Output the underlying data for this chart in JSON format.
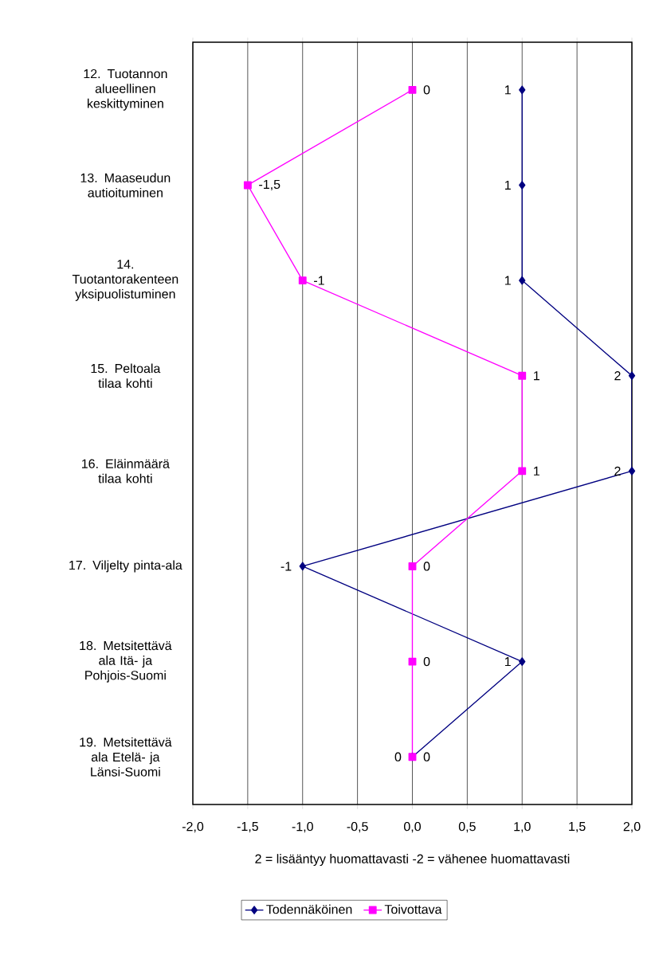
{
  "chart_data": {
    "type": "line",
    "orientation": "horizontal",
    "categories": [
      "12. Tuotannon alueellinen keskittyminen",
      "13. Maaseudun autioituminen",
      "14. Tuotantorakenteen yksipuolistuminen",
      "15. Peltoala tilaa kohti",
      "16. Eläinmäärä tilaa kohti",
      "17. Viljelty pinta-ala",
      "18. Metsitettävä ala Itä- ja Pohjois-Suomi",
      "19. Metsitettävä ala Etelä- ja Länsi-Suomi"
    ],
    "series": [
      {
        "name": "Todennäköinen",
        "color": "#000080",
        "marker": "diamond",
        "values": [
          1,
          1,
          1,
          2,
          2,
          -1,
          1,
          0
        ],
        "value_labels": [
          "1",
          "1",
          "1",
          "2",
          "2",
          "-1",
          "1",
          "0"
        ]
      },
      {
        "name": "Toivottava",
        "color": "#ff00ff",
        "marker": "square",
        "values": [
          0,
          -1.5,
          -1,
          1,
          1,
          0,
          0,
          0
        ],
        "value_labels": [
          "0",
          "-1,5",
          "-1",
          "1",
          "1",
          "0",
          "0",
          "0"
        ]
      }
    ],
    "xlim": [
      -2,
      2
    ],
    "xticks": [
      {
        "value": -2,
        "label": "-2,0"
      },
      {
        "value": -1.5,
        "label": "-1,5"
      },
      {
        "value": -1,
        "label": "-1,0"
      },
      {
        "value": -0.5,
        "label": "-0,5"
      },
      {
        "value": 0,
        "label": "0,0"
      },
      {
        "value": 0.5,
        "label": "0,5"
      },
      {
        "value": 1,
        "label": "1,0"
      },
      {
        "value": 1.5,
        "label": "1,5"
      },
      {
        "value": 2,
        "label": "2,0"
      }
    ],
    "xlabel": "2 = lisääntyy huomattavasti  -2 = vähenee huomattavasti",
    "grid": "x",
    "legend": "bottom"
  }
}
